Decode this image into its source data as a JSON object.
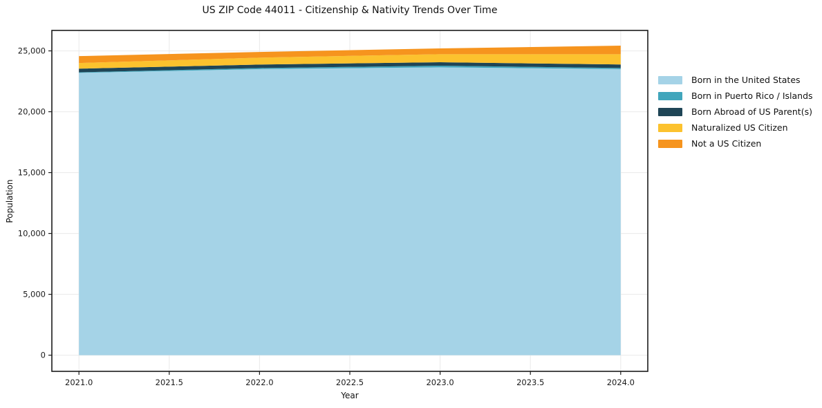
{
  "chart_data": {
    "type": "area",
    "stacked": true,
    "title": "US ZIP Code 44011 - Citizenship & Nativity Trends Over Time",
    "xlabel": "Year",
    "ylabel": "Population",
    "x": [
      2021,
      2022,
      2023,
      2024
    ],
    "series": [
      {
        "name": "Born in the United States",
        "color": "#A5D3E7",
        "values": [
          23190,
          23500,
          23650,
          23500
        ]
      },
      {
        "name": "Born in Puerto Rico / Islands",
        "color": "#41A6BC",
        "values": [
          50,
          90,
          130,
          95
        ]
      },
      {
        "name": "Born Abroad of US Parent(s)",
        "color": "#1F4556",
        "values": [
          300,
          285,
          285,
          285
        ]
      },
      {
        "name": "Naturalized US Citizen",
        "color": "#FCC22E",
        "values": [
          460,
          570,
          665,
          850
        ]
      },
      {
        "name": "Not a US Citizen",
        "color": "#F6941E",
        "values": [
          570,
          470,
          470,
          700
        ]
      }
    ],
    "xlim": [
      2020.85,
      2024.15
    ],
    "ylim": [
      -1330,
      26680
    ],
    "xticks": [
      2021.0,
      2021.5,
      2022.0,
      2022.5,
      2023.0,
      2023.5,
      2024.0
    ],
    "yticks": [
      0,
      5000,
      10000,
      15000,
      20000,
      25000
    ],
    "xtick_labels": [
      "2021.0",
      "2021.5",
      "2022.0",
      "2022.5",
      "2023.0",
      "2023.5",
      "2024.0"
    ],
    "ytick_labels": [
      "0",
      "5,000",
      "10,000",
      "15,000",
      "20,000",
      "25,000"
    ],
    "grid": true,
    "grid_color": "#e9e9e9",
    "spine_color": "#1a1a1a",
    "legend_position": "center-right"
  }
}
